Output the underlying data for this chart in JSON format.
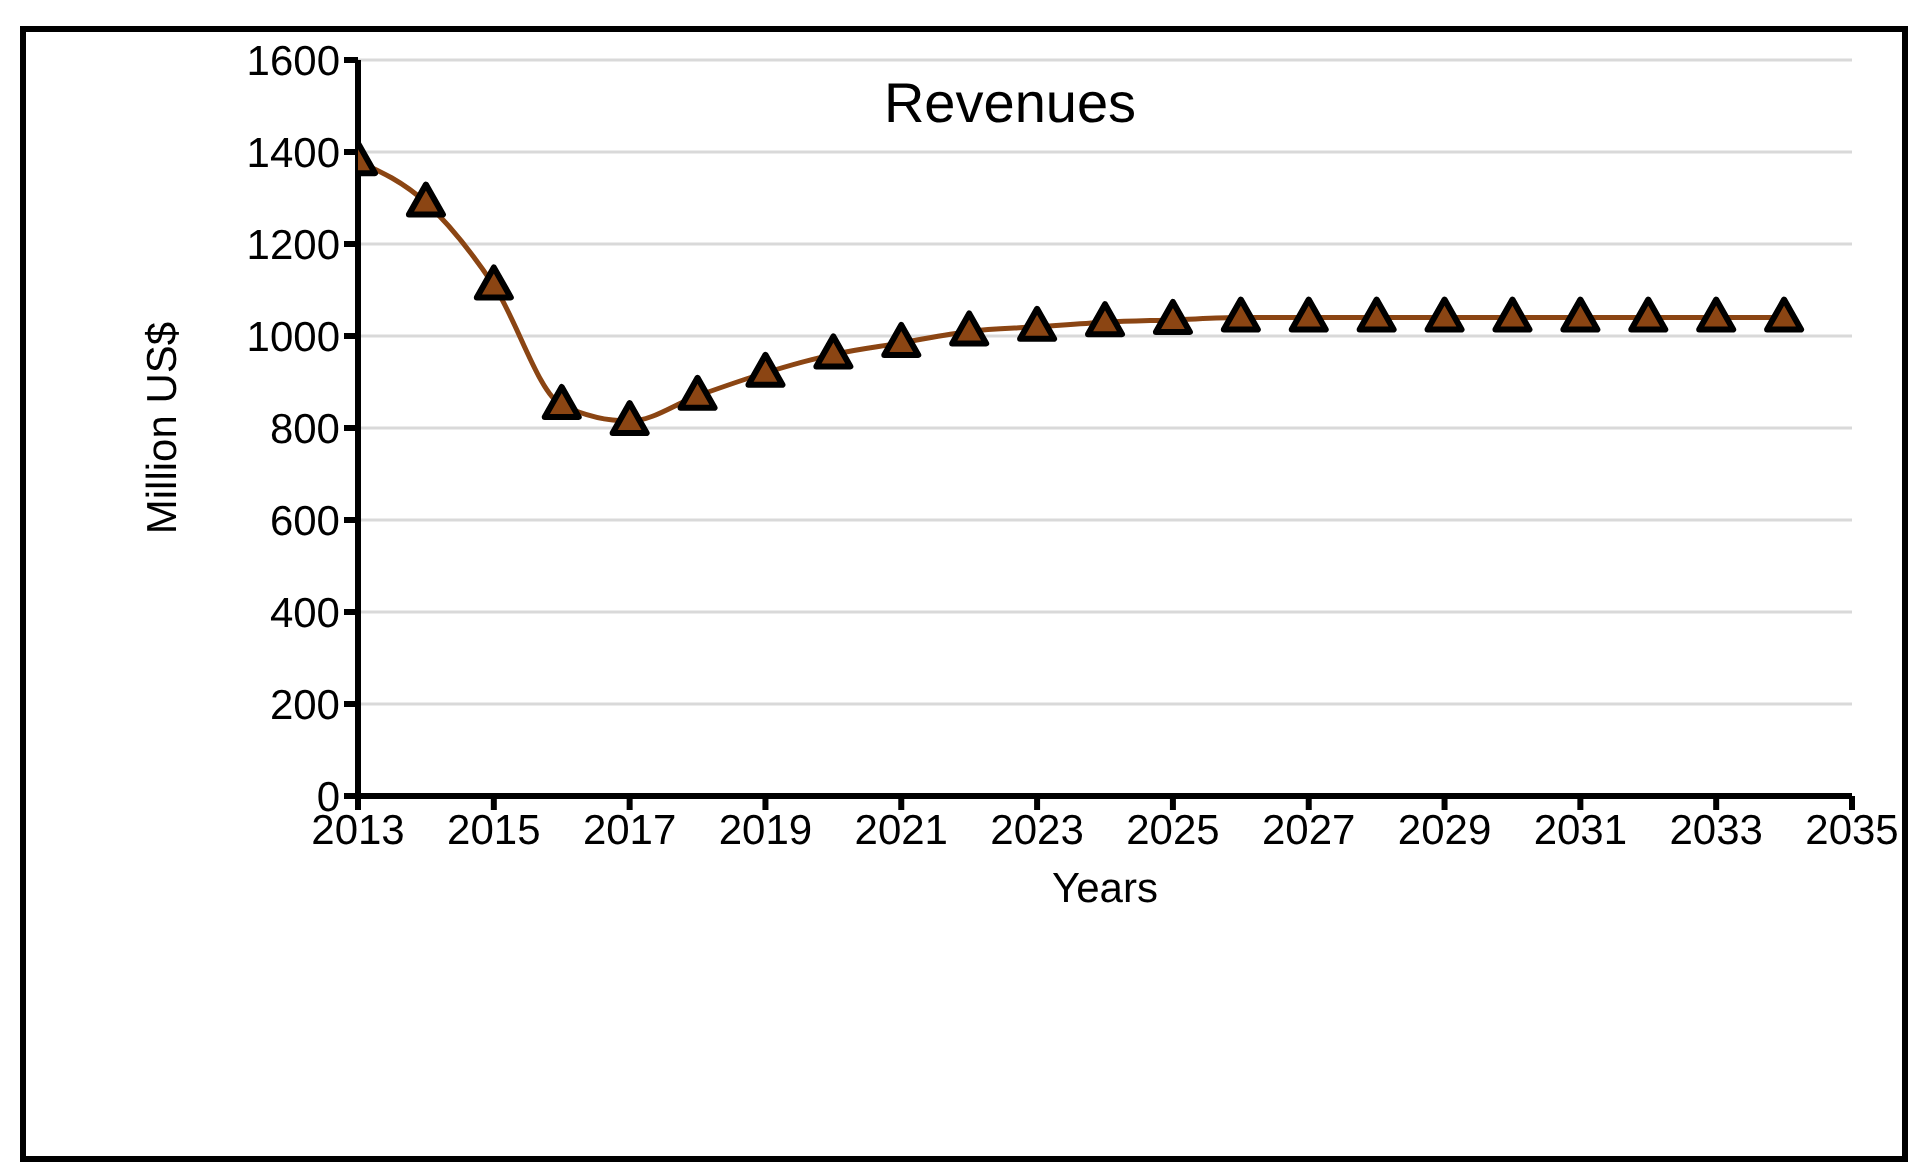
{
  "chart_data": {
    "type": "line",
    "title": "Revenues",
    "xlabel": "Years",
    "ylabel": "Million US$",
    "x": [
      2013,
      2014,
      2015,
      2016,
      2017,
      2018,
      2019,
      2020,
      2021,
      2022,
      2023,
      2024,
      2025,
      2026,
      2027,
      2028,
      2029,
      2030,
      2031,
      2032,
      2033,
      2034
    ],
    "series": [
      {
        "color": "#8b4513",
        "values": [
          1380,
          1290,
          1110,
          850,
          815,
          870,
          920,
          960,
          985,
          1010,
          1020,
          1030,
          1035,
          1040,
          1040,
          1040,
          1040,
          1040,
          1040,
          1040,
          1040,
          1040
        ]
      }
    ],
    "xlim": [
      2013,
      2035
    ],
    "xticks": [
      2013,
      2015,
      2017,
      2019,
      2021,
      2023,
      2025,
      2027,
      2029,
      2031,
      2033,
      2035
    ],
    "ylim": [
      0,
      1600
    ],
    "yticks": [
      0,
      200,
      400,
      600,
      800,
      1000,
      1200,
      1400,
      1600
    ],
    "grid": "y",
    "marker": "triangle",
    "line_style": "solid"
  }
}
